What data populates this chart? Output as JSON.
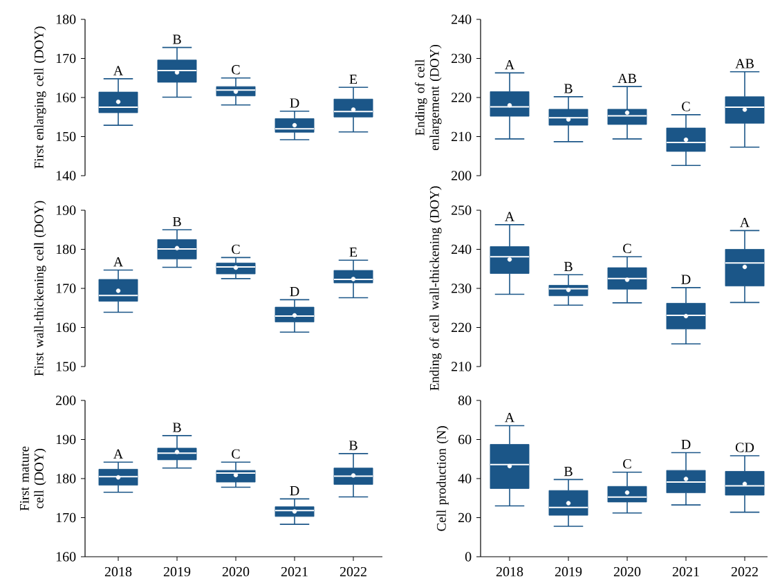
{
  "chart_data": [
    {
      "type": "box",
      "ylabel": "First enlarging cell (DOY)",
      "categories": [
        "2018",
        "2019",
        "2020",
        "2021",
        "2022"
      ],
      "color": "#1b5688",
      "ylim": [
        140,
        180
      ],
      "yticks": [
        140,
        150,
        160,
        170,
        180
      ],
      "tick_labels": "y",
      "boxes": [
        {
          "low": 152.9,
          "q1": 156.1,
          "median": 157.5,
          "q3": 161.4,
          "high": 164.8,
          "mean": 158.9
        },
        {
          "low": 160.1,
          "q1": 163.9,
          "median": 166.9,
          "q3": 169.6,
          "high": 172.8,
          "mean": 166.4
        },
        {
          "low": 158.1,
          "q1": 160.4,
          "median": 161.9,
          "q3": 162.8,
          "high": 165.0,
          "mean": 161.5
        },
        {
          "low": 149.2,
          "q1": 151.1,
          "median": 152.0,
          "q3": 154.6,
          "high": 156.5,
          "mean": 152.9
        },
        {
          "low": 151.2,
          "q1": 155.0,
          "median": 156.4,
          "q3": 159.6,
          "high": 162.6,
          "mean": 156.9
        }
      ],
      "annotations": [
        {
          "text": "A",
          "x": "2018",
          "y": 164.8
        },
        {
          "text": "B",
          "x": "2019",
          "y": 172.8
        },
        {
          "text": "C",
          "x": "2020",
          "y": 165.0
        },
        {
          "text": "D",
          "x": "2021",
          "y": 156.5
        },
        {
          "text": "E",
          "x": "2022",
          "y": 162.6
        }
      ]
    },
    {
      "type": "box",
      "ylabel": "Ending of cell enlargement (DOY)",
      "categories": [
        "2018",
        "2019",
        "2020",
        "2021",
        "2022"
      ],
      "color": "#1b5688",
      "ylim": [
        200,
        240
      ],
      "yticks": [
        200,
        210,
        220,
        230,
        240
      ],
      "tick_labels": "y",
      "boxes": [
        {
          "low": 209.4,
          "q1": 215.2,
          "median": 217.6,
          "q3": 221.5,
          "high": 226.3,
          "mean": 218.0
        },
        {
          "low": 208.7,
          "q1": 212.9,
          "median": 214.8,
          "q3": 217.0,
          "high": 220.2,
          "mean": 214.4
        },
        {
          "low": 209.4,
          "q1": 213.1,
          "median": 215.3,
          "q3": 217.0,
          "high": 222.8,
          "mean": 216.1
        },
        {
          "low": 202.6,
          "q1": 206.2,
          "median": 208.5,
          "q3": 212.2,
          "high": 215.6,
          "mean": 209.2
        },
        {
          "low": 207.3,
          "q1": 213.4,
          "median": 217.5,
          "q3": 220.2,
          "high": 226.6,
          "mean": 216.9
        }
      ],
      "annotations": [
        {
          "text": "A",
          "x": "2018",
          "y": 226.3
        },
        {
          "text": "B",
          "x": "2019",
          "y": 220.2
        },
        {
          "text": "AB",
          "x": "2020",
          "y": 222.8
        },
        {
          "text": "C",
          "x": "2021",
          "y": 215.6
        },
        {
          "text": "AB",
          "x": "2022",
          "y": 226.6
        }
      ]
    },
    {
      "type": "box",
      "ylabel": "First wall-thickening cell (DOY)",
      "categories": [
        "2018",
        "2019",
        "2020",
        "2021",
        "2022"
      ],
      "color": "#1b5688",
      "ylim": [
        150,
        190
      ],
      "yticks": [
        150,
        160,
        170,
        180,
        190
      ],
      "tick_labels": "y",
      "boxes": [
        {
          "low": 163.9,
          "q1": 166.7,
          "median": 168.2,
          "q3": 172.3,
          "high": 174.7,
          "mean": 169.4
        },
        {
          "low": 175.4,
          "q1": 177.5,
          "median": 180.1,
          "q3": 182.5,
          "high": 185.0,
          "mean": 180.3
        },
        {
          "low": 172.5,
          "q1": 173.7,
          "median": 175.5,
          "q3": 176.5,
          "high": 177.9,
          "mean": 175.3
        },
        {
          "low": 158.8,
          "q1": 161.4,
          "median": 162.9,
          "q3": 165.2,
          "high": 167.1,
          "mean": 163.1
        },
        {
          "low": 167.6,
          "q1": 171.4,
          "median": 172.3,
          "q3": 174.6,
          "high": 177.2,
          "mean": 172.4
        }
      ],
      "annotations": [
        {
          "text": "A",
          "x": "2018",
          "y": 174.7
        },
        {
          "text": "B",
          "x": "2019",
          "y": 185.0
        },
        {
          "text": "C",
          "x": "2020",
          "y": 177.9
        },
        {
          "text": "D",
          "x": "2021",
          "y": 167.1
        },
        {
          "text": "E",
          "x": "2022",
          "y": 177.2
        }
      ]
    },
    {
      "type": "box",
      "ylabel": "Ending of cell wall-thickening (DOY)",
      "categories": [
        "2018",
        "2019",
        "2020",
        "2021",
        "2022"
      ],
      "color": "#1b5688",
      "ylim": [
        210,
        250
      ],
      "yticks": [
        210,
        220,
        230,
        240,
        250
      ],
      "tick_labels": "y",
      "boxes": [
        {
          "low": 228.5,
          "q1": 233.8,
          "median": 238.1,
          "q3": 240.7,
          "high": 246.3,
          "mean": 237.4
        },
        {
          "low": 225.7,
          "q1": 228.1,
          "median": 229.9,
          "q3": 230.8,
          "high": 233.5,
          "mean": 229.6
        },
        {
          "low": 226.3,
          "q1": 229.8,
          "median": 232.5,
          "q3": 235.3,
          "high": 238.1,
          "mean": 232.2
        },
        {
          "low": 215.8,
          "q1": 219.6,
          "median": 223.1,
          "q3": 226.2,
          "high": 230.2,
          "mean": 222.9
        },
        {
          "low": 226.4,
          "q1": 230.6,
          "median": 236.5,
          "q3": 240.0,
          "high": 244.8,
          "mean": 235.5
        }
      ],
      "annotations": [
        {
          "text": "A",
          "x": "2018",
          "y": 246.3
        },
        {
          "text": "B",
          "x": "2019",
          "y": 233.5
        },
        {
          "text": "C",
          "x": "2020",
          "y": 238.1
        },
        {
          "text": "D",
          "x": "2021",
          "y": 230.2
        },
        {
          "text": "A",
          "x": "2022",
          "y": 244.8
        }
      ]
    },
    {
      "type": "box",
      "ylabel": "First mature cell (DOY)",
      "categories": [
        "2018",
        "2019",
        "2020",
        "2021",
        "2022"
      ],
      "color": "#1b5688",
      "ylim": [
        160,
        200
      ],
      "yticks": [
        160,
        170,
        180,
        190,
        200
      ],
      "boxes": [
        {
          "low": 176.5,
          "q1": 178.3,
          "median": 180.5,
          "q3": 182.4,
          "high": 184.2,
          "mean": 180.3
        },
        {
          "low": 182.7,
          "q1": 184.8,
          "median": 186.5,
          "q3": 187.8,
          "high": 191.0,
          "mean": 186.8
        },
        {
          "low": 177.8,
          "q1": 179.1,
          "median": 181.4,
          "q3": 182.1,
          "high": 184.2,
          "mean": 180.9
        },
        {
          "low": 168.3,
          "q1": 170.3,
          "median": 171.8,
          "q3": 172.8,
          "high": 174.8,
          "mean": 171.6
        },
        {
          "low": 175.3,
          "q1": 178.5,
          "median": 180.6,
          "q3": 182.7,
          "high": 186.4,
          "mean": 180.8
        }
      ],
      "annotations": [
        {
          "text": "A",
          "x": "2018",
          "y": 184.2
        },
        {
          "text": "B",
          "x": "2019",
          "y": 191.0
        },
        {
          "text": "C",
          "x": "2020",
          "y": 184.2
        },
        {
          "text": "D",
          "x": "2021",
          "y": 174.8
        },
        {
          "text": "B",
          "x": "2022",
          "y": 186.4
        }
      ]
    },
    {
      "type": "box",
      "ylabel": "Cell production (N)",
      "categories": [
        "2018",
        "2019",
        "2020",
        "2021",
        "2022"
      ],
      "color": "#1b5688",
      "ylim": [
        0,
        80
      ],
      "yticks": [
        0,
        20,
        40,
        60,
        80
      ],
      "boxes": [
        {
          "low": 26.0,
          "q1": 34.9,
          "median": 47.2,
          "q3": 57.5,
          "high": 67.1,
          "mean": 46.4
        },
        {
          "low": 15.6,
          "q1": 21.2,
          "median": 25.2,
          "q3": 33.9,
          "high": 39.5,
          "mean": 27.4
        },
        {
          "low": 22.4,
          "q1": 28.0,
          "median": 30.5,
          "q3": 36.0,
          "high": 43.3,
          "mean": 32.8
        },
        {
          "low": 26.5,
          "q1": 32.7,
          "median": 38.2,
          "q3": 44.2,
          "high": 53.3,
          "mean": 39.8
        },
        {
          "low": 22.8,
          "q1": 31.5,
          "median": 36.3,
          "q3": 43.7,
          "high": 51.7,
          "mean": 37.3
        }
      ],
      "annotations": [
        {
          "text": "A",
          "x": "2018",
          "y": 67.1
        },
        {
          "text": "B",
          "x": "2019",
          "y": 39.5
        },
        {
          "text": "C",
          "x": "2020",
          "y": 43.3
        },
        {
          "text": "D",
          "x": "2021",
          "y": 53.3
        },
        {
          "text": "CD",
          "x": "2022",
          "y": 51.7
        }
      ]
    }
  ]
}
